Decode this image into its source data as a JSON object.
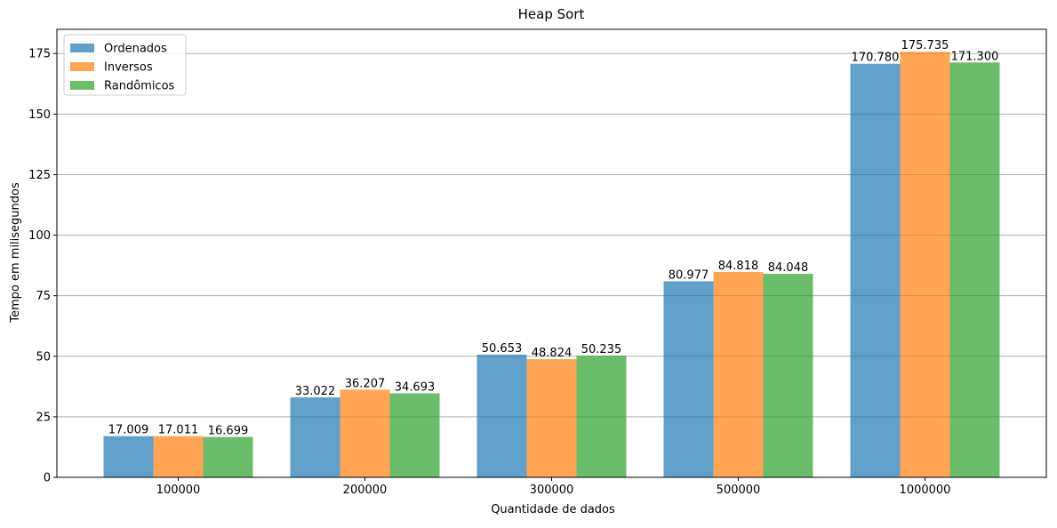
{
  "chart_data": {
    "type": "bar",
    "title": "Heap Sort",
    "xlabel": "Quantidade de dados",
    "ylabel": "Tempo em milisegundos",
    "categories": [
      "100000",
      "200000",
      "300000",
      "500000",
      "1000000"
    ],
    "series": [
      {
        "name": "Ordenados",
        "color": "#1f77b4",
        "values": [
          17.009,
          33.022,
          50.653,
          80.977,
          170.78
        ],
        "labels": [
          "17.009",
          "33.022",
          "50.653",
          "80.977",
          "170.780"
        ]
      },
      {
        "name": "Inversos",
        "color": "#ff7f0e",
        "values": [
          17.011,
          36.207,
          48.824,
          84.818,
          175.735
        ],
        "labels": [
          "17.011",
          "36.207",
          "48.824",
          "84.818",
          "175.735"
        ]
      },
      {
        "name": "Randômicos",
        "color": "#2ca02c",
        "values": [
          16.699,
          34.693,
          50.235,
          84.048,
          171.3
        ],
        "labels": [
          "16.699",
          "34.693",
          "50.235",
          "84.048",
          "171.300"
        ]
      }
    ],
    "ylim": [
      0,
      185
    ],
    "yticks": [
      "0",
      "25",
      "50",
      "75",
      "100",
      "125",
      "150",
      "175"
    ],
    "grid": "horizontal",
    "legend": "top-left",
    "bar_opacity": 0.7
  }
}
